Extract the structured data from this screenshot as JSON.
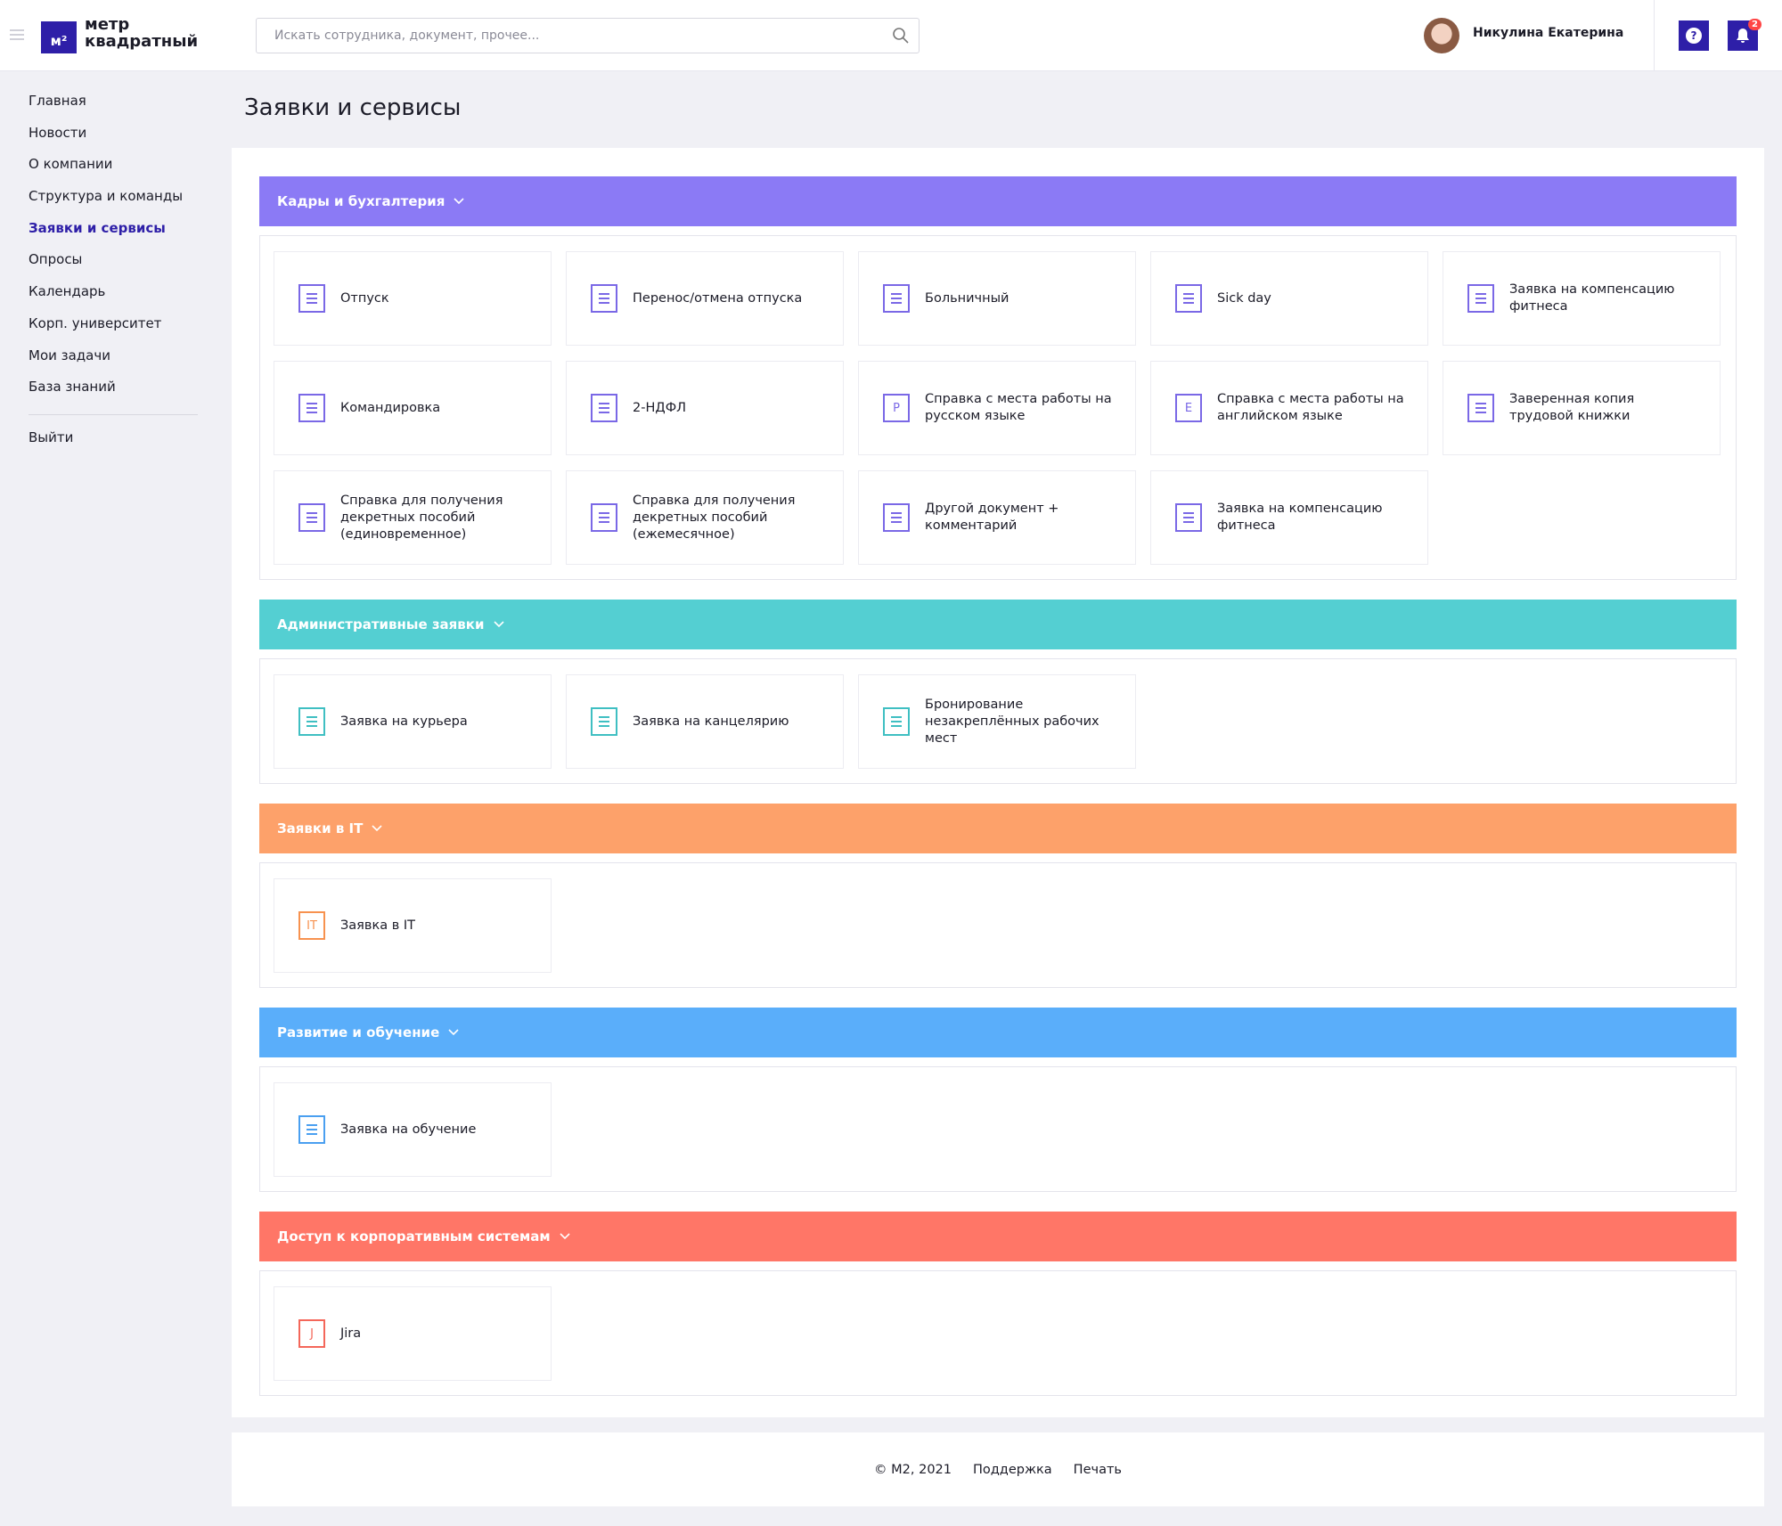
{
  "header": {
    "logo_mark": "м²",
    "logo_text": "метр квадратный",
    "search_placeholder": "Искать сотрудника, документ, прочее...",
    "user_name": "Никулина Екатерина",
    "help": "?",
    "notifications": "2"
  },
  "sidebar": {
    "items": [
      "Главная",
      "Новости",
      "О компании",
      "Структура и команды",
      "Заявки и сервисы",
      "Опросы",
      "Календарь",
      "Корп. университет",
      "Мои задачи",
      "База знаний"
    ],
    "active": 4,
    "logout": "Выйти"
  },
  "page_title": "Заявки и сервисы",
  "sections": [
    {
      "title": "Кадры и бухгалтерия",
      "color": "#8b7af5",
      "icon_color": "#7a68e6",
      "items": [
        {
          "label": "Отпуск"
        },
        {
          "label": "Перенос/отмена отпуска"
        },
        {
          "label": "Больничный"
        },
        {
          "label": "Sick day"
        },
        {
          "label": "Заявка на компенсацию фитнеса"
        },
        {
          "label": "Командировка"
        },
        {
          "label": "2-НДФЛ"
        },
        {
          "label": "Справка с места работы на русском языке",
          "icon_text": "P"
        },
        {
          "label": "Справка с места работы на английском языке",
          "icon_text": "E"
        },
        {
          "label": "Заверенная копия трудовой книжки"
        },
        {
          "label": "Справка для получения декретных пособий (единовременное)"
        },
        {
          "label": "Справка для получения декретных пособий (ежемесячное)"
        },
        {
          "label": "Другой документ + комментарий"
        },
        {
          "label": "Заявка на компенсацию фитнеса"
        }
      ]
    },
    {
      "title": "Административные заявки",
      "color": "#54cfd2",
      "icon_color": "#3fbfc2",
      "items": [
        {
          "label": "Заявка на курьера"
        },
        {
          "label": "Заявка на канцелярию"
        },
        {
          "label": "Бронирование незакреплённых рабочих мест"
        }
      ]
    },
    {
      "title": "Заявки в IT",
      "color": "#fda16a",
      "icon_color": "#f7924f",
      "items": [
        {
          "label": "Заявка в IT",
          "icon_text": "IT"
        }
      ]
    },
    {
      "title": "Развитие и обучение",
      "color": "#5aaefa",
      "icon_color": "#4a9ff0",
      "items": [
        {
          "label": "Заявка на обучение"
        }
      ]
    },
    {
      "title": "Доступ к корпоративным системам",
      "color": "#ff7667",
      "icon_color": "#f4675a",
      "items": [
        {
          "label": "Jira",
          "icon_text": "J"
        }
      ]
    }
  ],
  "footer": {
    "copyright": "© M2, 2021",
    "links": [
      "Поддержка",
      "Печать"
    ]
  }
}
